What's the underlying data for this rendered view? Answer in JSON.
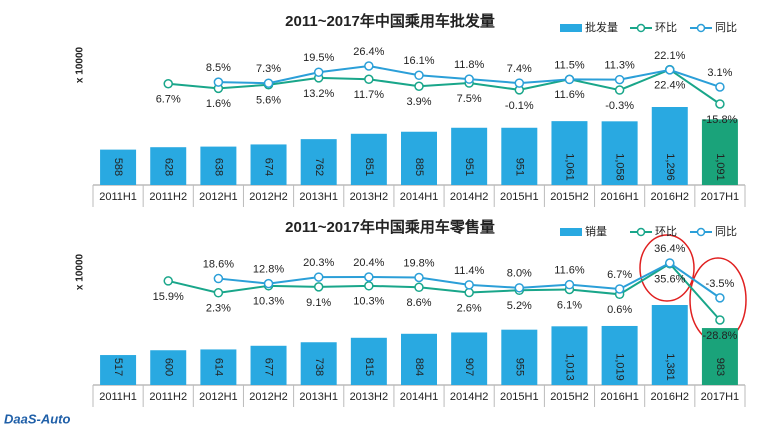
{
  "logo": "DaaS-Auto",
  "chart_data": [
    {
      "type": "bar",
      "title": "2011~2017年中国乘用车批发量",
      "ylabel": "x 10000",
      "categories": [
        "2011H1",
        "2011H2",
        "2012H1",
        "2012H2",
        "2013H1",
        "2013H2",
        "2014H1",
        "2014H2",
        "2015H1",
        "2015H2",
        "2016H1",
        "2016H2",
        "2017H1"
      ],
      "bar_name": "批发量",
      "values": [
        588,
        628,
        638,
        674,
        762,
        851,
        885,
        951,
        951,
        1061,
        1058,
        1296,
        1091
      ],
      "value_labels": [
        "588",
        "628",
        "638",
        "674",
        "762",
        "851",
        "885",
        "951",
        "951",
        "1,061",
        "1,058",
        "1,296",
        "1,091"
      ],
      "colors": [
        "#29a9e1",
        "#29a9e1",
        "#29a9e1",
        "#29a9e1",
        "#29a9e1",
        "#29a9e1",
        "#29a9e1",
        "#29a9e1",
        "#29a9e1",
        "#29a9e1",
        "#29a9e1",
        "#29a9e1",
        "#1aa37a"
      ],
      "series": [
        {
          "name": "环比",
          "type": "line",
          "color": "#19a68a",
          "values": [
            null,
            6.7,
            1.6,
            5.6,
            13.2,
            11.7,
            3.9,
            7.5,
            -0.1,
            11.6,
            -0.3,
            22.4,
            -15.8
          ],
          "value_labels": [
            null,
            "6.7%",
            "1.6%",
            "5.6%",
            "13.2%",
            "11.7%",
            "3.9%",
            "7.5%",
            "-0.1%",
            "11.6%",
            "-0.3%",
            "22.4%",
            "-15.8%"
          ]
        },
        {
          "name": "同比",
          "type": "line",
          "color": "#2b9fd8",
          "values": [
            null,
            null,
            8.5,
            7.3,
            19.5,
            26.4,
            16.1,
            11.8,
            7.4,
            11.5,
            11.3,
            22.1,
            3.1
          ],
          "value_labels": [
            null,
            null,
            "8.5%",
            "7.3%",
            "19.5%",
            "26.4%",
            "16.1%",
            "11.8%",
            "7.4%",
            "11.5%",
            "11.3%",
            "22.1%",
            "3.1%"
          ]
        }
      ]
    },
    {
      "type": "bar",
      "title": "2011~2017年中国乘用车零售量",
      "ylabel": "x 10000",
      "categories": [
        "2011H1",
        "2011H2",
        "2012H1",
        "2012H2",
        "2013H1",
        "2013H2",
        "2014H1",
        "2014H2",
        "2015H1",
        "2015H2",
        "2016H1",
        "2016H2",
        "2017H1"
      ],
      "bar_name": "销量",
      "values": [
        517,
        600,
        614,
        677,
        738,
        815,
        884,
        907,
        955,
        1013,
        1019,
        1381,
        983
      ],
      "value_labels": [
        "517",
        "600",
        "614",
        "677",
        "738",
        "815",
        "884",
        "907",
        "955",
        "1,013",
        "1,019",
        "1,381",
        "983"
      ],
      "colors": [
        "#29a9e1",
        "#29a9e1",
        "#29a9e1",
        "#29a9e1",
        "#29a9e1",
        "#29a9e1",
        "#29a9e1",
        "#29a9e1",
        "#29a9e1",
        "#29a9e1",
        "#29a9e1",
        "#29a9e1",
        "#1aa37a"
      ],
      "series": [
        {
          "name": "环比",
          "type": "line",
          "color": "#19a68a",
          "values": [
            null,
            15.9,
            2.3,
            10.3,
            9.1,
            10.3,
            8.6,
            2.6,
            5.2,
            6.1,
            0.6,
            35.6,
            -28.8
          ],
          "value_labels": [
            null,
            "15.9%",
            "2.3%",
            "10.3%",
            "9.1%",
            "10.3%",
            "8.6%",
            "2.6%",
            "5.2%",
            "6.1%",
            "0.6%",
            "35.6%",
            "-28.8%"
          ]
        },
        {
          "name": "同比",
          "type": "line",
          "color": "#2b9fd8",
          "values": [
            null,
            null,
            18.6,
            12.8,
            20.3,
            20.4,
            19.8,
            11.4,
            8.0,
            11.6,
            6.7,
            36.4,
            -3.5
          ],
          "value_labels": [
            null,
            null,
            "18.6%",
            "12.8%",
            "20.3%",
            "20.4%",
            "19.8%",
            "11.4%",
            "8.0%",
            "11.6%",
            "6.7%",
            "36.4%",
            "-3.5%"
          ]
        }
      ]
    }
  ]
}
